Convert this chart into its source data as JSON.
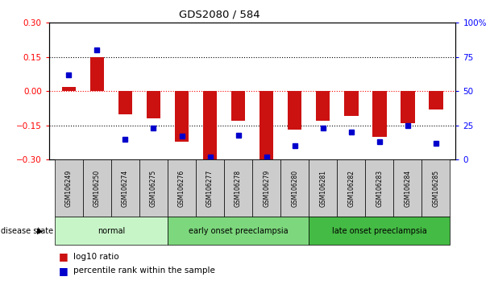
{
  "title": "GDS2080 / 584",
  "samples": [
    "GSM106249",
    "GSM106250",
    "GSM106274",
    "GSM106275",
    "GSM106276",
    "GSM106277",
    "GSM106278",
    "GSM106279",
    "GSM106280",
    "GSM106281",
    "GSM106282",
    "GSM106283",
    "GSM106284",
    "GSM106285"
  ],
  "log10_ratio": [
    0.02,
    0.15,
    -0.1,
    -0.12,
    -0.22,
    -0.3,
    -0.13,
    -0.3,
    -0.17,
    -0.13,
    -0.11,
    -0.2,
    -0.14,
    -0.08
  ],
  "percentile_rank": [
    62,
    80,
    15,
    23,
    17,
    2,
    18,
    2,
    10,
    23,
    20,
    13,
    25,
    12
  ],
  "ylim_left": [
    -0.3,
    0.3
  ],
  "ylim_right": [
    0,
    100
  ],
  "yticks_left": [
    -0.3,
    -0.15,
    0.0,
    0.15,
    0.3
  ],
  "yticks_right": [
    0,
    25,
    50,
    75,
    100
  ],
  "ytick_labels_right": [
    "0",
    "25",
    "50",
    "75",
    "100%"
  ],
  "groups": [
    {
      "label": "normal",
      "start": 0,
      "end": 3,
      "color": "#c8f5c8"
    },
    {
      "label": "early onset preeclampsia",
      "start": 4,
      "end": 8,
      "color": "#7dd87d"
    },
    {
      "label": "late onset preeclampsia",
      "start": 9,
      "end": 13,
      "color": "#44bb44"
    }
  ],
  "bar_color": "#cc1111",
  "dot_color": "#0000cc",
  "bar_width": 0.5,
  "tick_bg_color": "#cccccc",
  "disease_state_label": "disease state",
  "legend_items": [
    "log10 ratio",
    "percentile rank within the sample"
  ],
  "hline_vals": [
    -0.15,
    0.0,
    0.15
  ],
  "n_samples": 14
}
